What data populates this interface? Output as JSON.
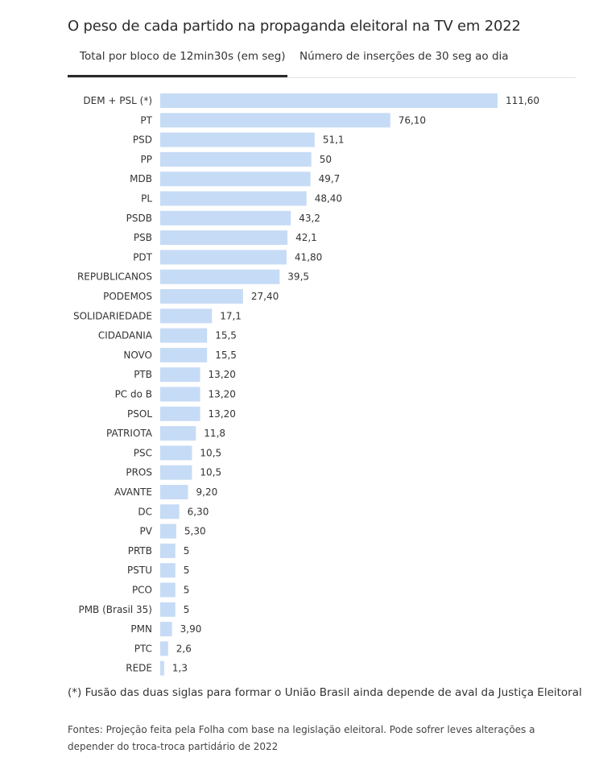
{
  "title": "O peso de cada partido na propaganda eleitoral na TV em 2022",
  "tabs": [
    {
      "label": "Total por bloco de 12min30s (em seg)",
      "active": true
    },
    {
      "label": "Número de inserções de 30 seg ao dia",
      "active": false
    }
  ],
  "colors": {
    "bar": "#c6dbf5",
    "active_tab_underline": "#2b2b2b"
  },
  "chart_data": {
    "type": "bar",
    "orientation": "horizontal",
    "categories": [
      "DEM + PSL (*)",
      "PT",
      "PSD",
      "PP",
      "MDB",
      "PL",
      "PSDB",
      "PSB",
      "PDT",
      "REPUBLICANOS",
      "PODEMOS",
      "SOLIDARIEDADE",
      "CIDADANIA",
      "NOVO",
      "PTB",
      "PC do B",
      "PSOL",
      "PATRIOTA",
      "PSC",
      "PROS",
      "AVANTE",
      "DC",
      "PV",
      "PRTB",
      "PSTU",
      "PCO",
      "PMB (Brasil 35)",
      "PMN",
      "PTC",
      "REDE"
    ],
    "values": [
      111.6,
      76.1,
      51.1,
      50,
      49.7,
      48.4,
      43.2,
      42.1,
      41.8,
      39.5,
      27.4,
      17.1,
      15.5,
      15.5,
      13.2,
      13.2,
      13.2,
      11.8,
      10.5,
      10.5,
      9.2,
      6.3,
      5.3,
      5,
      5,
      5,
      5,
      3.9,
      2.6,
      1.3
    ],
    "value_labels": [
      "111,60",
      "76,10",
      "51,1",
      "50",
      "49,7",
      "48,40",
      "43,2",
      "42,1",
      "41,80",
      "39,5",
      "27,40",
      "17,1",
      "15,5",
      "15,5",
      "13,20",
      "13,20",
      "13,20",
      "11,8",
      "10,5",
      "10,5",
      "9,20",
      "6,30",
      "5,30",
      "5",
      "5",
      "5",
      "5",
      "3,90",
      "2,6",
      "1,3"
    ],
    "xlim": [
      0,
      111.6
    ],
    "grid": false,
    "legend": "none"
  },
  "footnote": "(*) Fusão das duas siglas para formar o União Brasil ainda depende de aval da Justiça Eleitoral",
  "sources": "Fontes: Projeção feita pela Folha com base na legislação eleitoral. Pode sofrer leves alterações a depender do troca-troca partidário de 2022"
}
